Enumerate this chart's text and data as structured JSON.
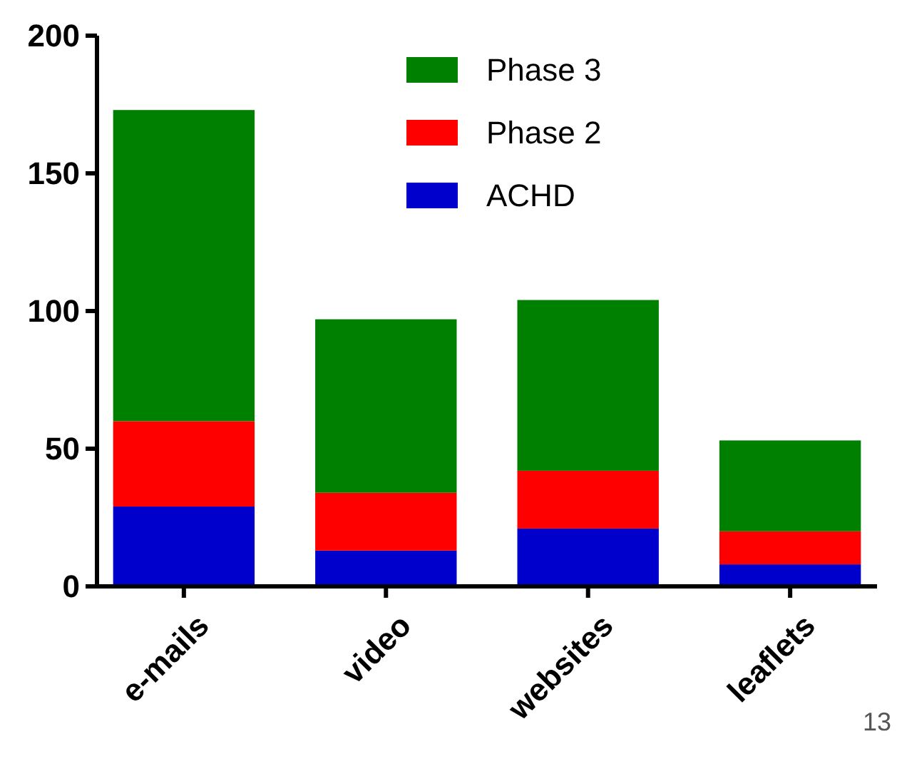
{
  "chart_data": {
    "type": "bar",
    "stacked": true,
    "categories": [
      "e-mails",
      "video",
      "websites",
      "leaflets"
    ],
    "series": [
      {
        "name": "ACHD",
        "color": "#0000cc",
        "values": [
          29,
          13,
          21,
          8
        ]
      },
      {
        "name": "Phase 2",
        "color": "#ff0000",
        "values": [
          31,
          21,
          21,
          12
        ]
      },
      {
        "name": "Phase 3",
        "color": "#008000",
        "values": [
          113,
          63,
          62,
          33
        ]
      }
    ],
    "ylim": [
      0,
      200
    ],
    "yticks": [
      0,
      50,
      100,
      150,
      200
    ],
    "grid": false,
    "legend": "top",
    "annotations": [
      "13"
    ]
  }
}
